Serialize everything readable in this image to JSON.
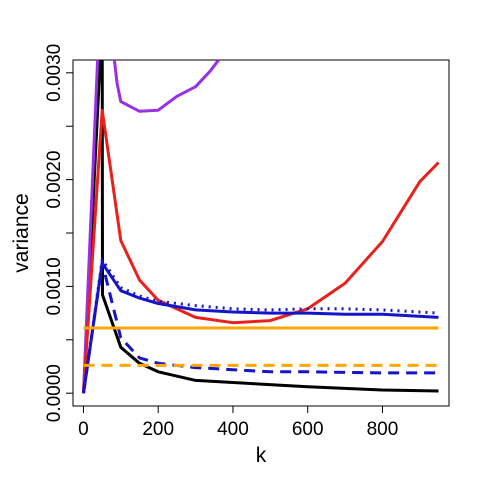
{
  "chart_data": {
    "type": "line",
    "title": "",
    "xlabel": "k",
    "ylabel": "variance",
    "xlim": [
      -28,
      978
    ],
    "ylim": [
      -0.00012,
      0.00312
    ],
    "x_ticks": [
      0,
      200,
      400,
      600,
      800
    ],
    "x_tick_labels": [
      "0",
      "200",
      "400",
      "600",
      "800"
    ],
    "y_ticks": [
      0.0,
      0.0005,
      0.001,
      0.0015,
      0.002,
      0.0025,
      0.003
    ],
    "y_tick_labels": [
      "0.0000",
      "",
      "0.0010",
      "",
      "0.0020",
      "",
      "0.0030"
    ],
    "grid": false,
    "series": [
      {
        "color": "#000000",
        "style": "solid",
        "width": 2,
        "x": [
          0,
          50,
          51,
          100,
          150,
          200,
          300,
          400,
          600,
          800,
          950
        ],
        "y": [
          0.0,
          0.0035,
          0.00092,
          0.00043,
          0.00028,
          0.0002,
          0.00012,
          0.0001,
          6e-05,
          3e-05,
          2e-05
        ]
      },
      {
        "color": "#9B30E0",
        "style": "solid",
        "width": 3,
        "x": [
          0,
          40,
          60,
          90,
          100,
          150,
          200,
          250,
          300,
          340,
          400
        ],
        "y": [
          0.0,
          0.0033,
          0.0038,
          0.0029,
          0.00273,
          0.00264,
          0.00265,
          0.00278,
          0.00287,
          0.00302,
          0.0033
        ]
      },
      {
        "color": "#E8211A",
        "style": "solid",
        "width": 3,
        "x": [
          0,
          50,
          100,
          150,
          200,
          300,
          400,
          500,
          600,
          700,
          800,
          900,
          950
        ],
        "y": [
          0.0,
          0.00265,
          0.00143,
          0.00106,
          0.00087,
          0.00071,
          0.00066,
          0.00068,
          0.00079,
          0.00103,
          0.00142,
          0.00198,
          0.00216
        ]
      },
      {
        "color": "#1515C8",
        "style": "solid",
        "width": 3,
        "x": [
          0,
          50,
          100,
          150,
          200,
          300,
          400,
          500,
          600,
          700,
          800,
          950
        ],
        "y": [
          0.0,
          0.00122,
          0.00096,
          0.00089,
          0.00084,
          0.00078,
          0.00076,
          0.00075,
          0.00075,
          0.00074,
          0.00074,
          0.00071
        ]
      },
      {
        "color": "#1515C8",
        "style": "dotted",
        "width": 3,
        "x": [
          0,
          50,
          100,
          150,
          200,
          300,
          400,
          500,
          600,
          700,
          800,
          950
        ],
        "y": [
          0.0,
          0.00125,
          0.00099,
          0.00091,
          0.00086,
          0.00082,
          0.00079,
          0.00078,
          0.00079,
          0.00079,
          0.00078,
          0.00075
        ]
      },
      {
        "color": "#1515C8",
        "style": "dashed",
        "width": 3,
        "x": [
          0,
          50,
          100,
          150,
          200,
          300,
          400,
          500,
          600,
          800,
          950
        ],
        "y": [
          0.0,
          0.00122,
          0.00052,
          0.00033,
          0.00028,
          0.00024,
          0.00022,
          0.0002,
          0.0002,
          0.00019,
          0.00019
        ]
      },
      {
        "color": "#FFA500",
        "style": "solid",
        "width": 3,
        "x": [
          0,
          950
        ],
        "y": [
          0.00061,
          0.00061
        ]
      },
      {
        "color": "#FFA500",
        "style": "dashed",
        "width": 3,
        "x": [
          0,
          950
        ],
        "y": [
          0.00026,
          0.00026
        ]
      }
    ]
  }
}
